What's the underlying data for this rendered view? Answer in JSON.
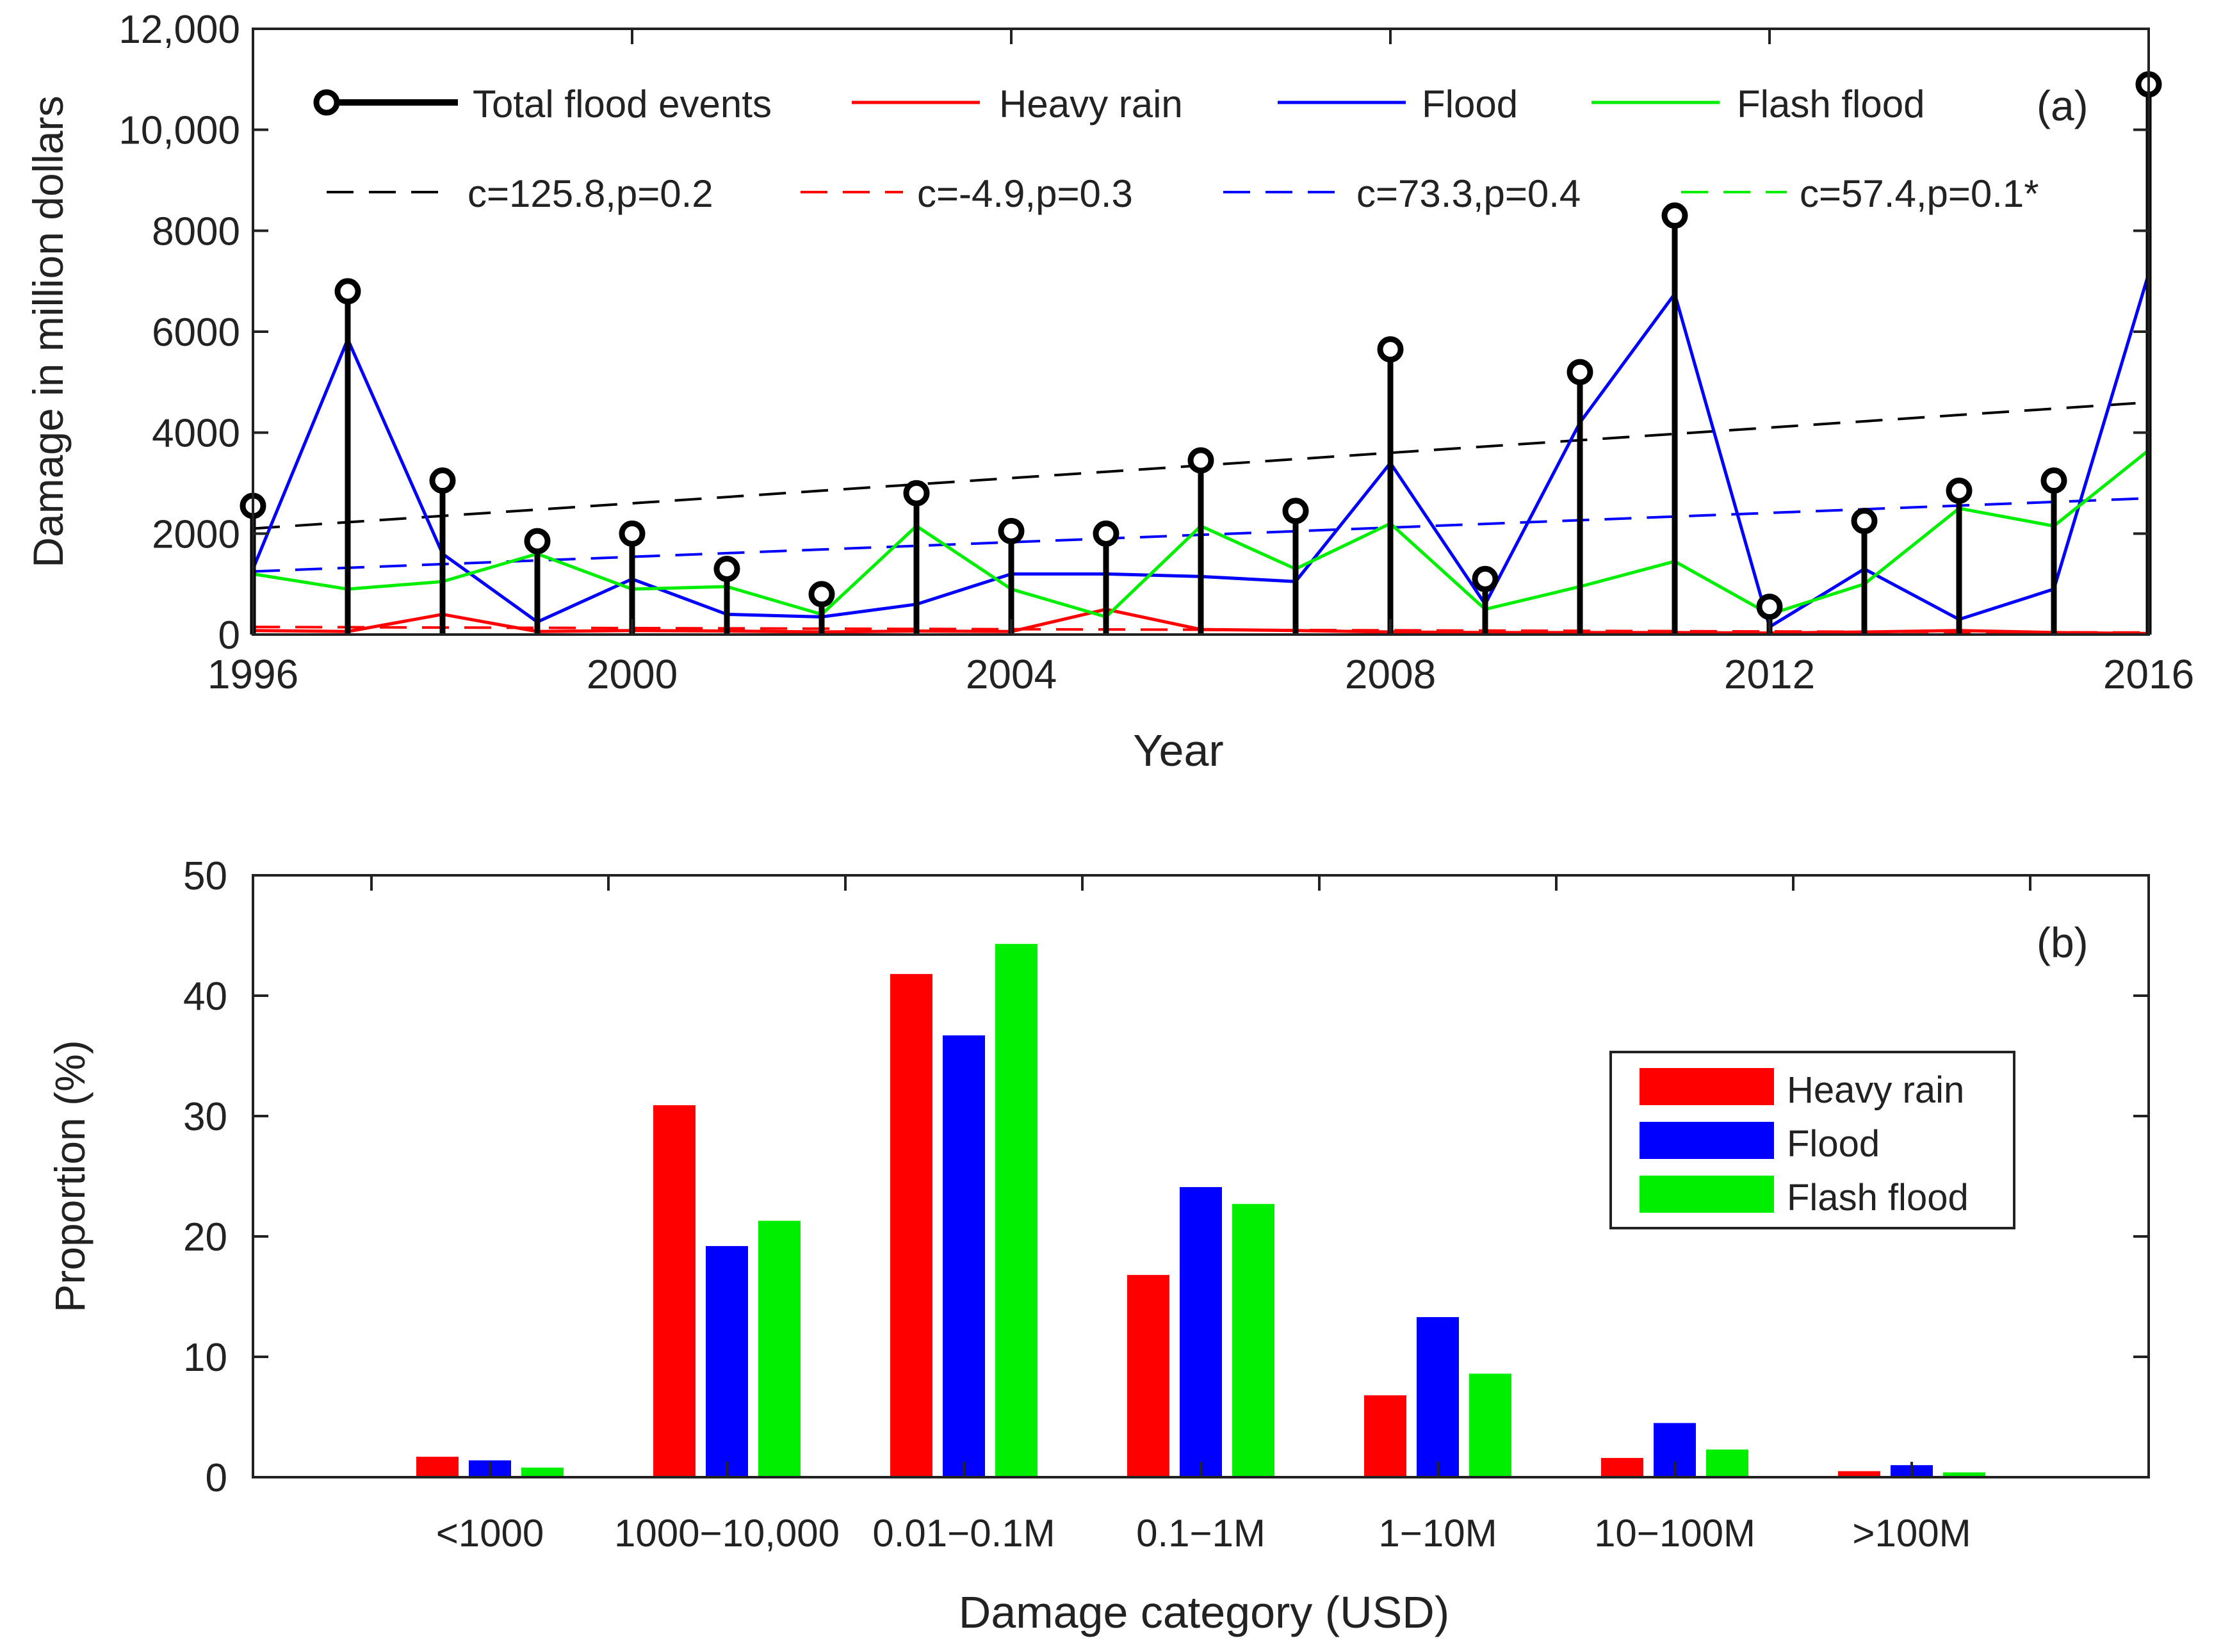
{
  "colors": {
    "heavy_rain": "#ff0000",
    "flood": "#0000ff",
    "flash_flood": "#00ee00",
    "total": "#000000"
  },
  "chart_data": [
    {
      "panel_label": "(a)",
      "type": "line",
      "title": "",
      "xlabel": "Year",
      "ylabel": "Damage in million dollars",
      "xlim": [
        1996,
        2016
      ],
      "ylim": [
        0,
        12000
      ],
      "x_ticks": [
        1996,
        2000,
        2004,
        2008,
        2012,
        2016
      ],
      "x_tick_labels": [
        "1996",
        "2000",
        "2004",
        "2008",
        "2012",
        "2016"
      ],
      "y_ticks": [
        0,
        2000,
        4000,
        6000,
        8000,
        10000,
        12000
      ],
      "y_tick_labels": [
        "0",
        "2000",
        "4000",
        "6000",
        "8000",
        "10,000",
        "12,000"
      ],
      "x": [
        1996,
        1997,
        1998,
        1999,
        2000,
        2001,
        2002,
        2003,
        2004,
        2005,
        2006,
        2007,
        2008,
        2009,
        2010,
        2011,
        2012,
        2013,
        2014,
        2015,
        2016
      ],
      "series": [
        {
          "key": "total",
          "name": "Total flood events",
          "style": "stem",
          "color": "#000000",
          "values": [
            2550,
            6800,
            3050,
            1850,
            2000,
            1300,
            800,
            2800,
            2050,
            2000,
            3450,
            2450,
            5650,
            1100,
            5200,
            8300,
            550,
            2250,
            2850,
            3050,
            10900
          ]
        },
        {
          "key": "heavy_rain",
          "name": "Heavy rain",
          "style": "line",
          "color": "#ff0000",
          "values": [
            80,
            60,
            400,
            60,
            80,
            70,
            50,
            70,
            60,
            500,
            100,
            80,
            50,
            40,
            40,
            40,
            30,
            50,
            80,
            40,
            20
          ]
        },
        {
          "key": "flood",
          "name": "Flood",
          "style": "line",
          "color": "#0000ff",
          "values": [
            1300,
            5850,
            1600,
            250,
            1100,
            400,
            350,
            600,
            1200,
            1200,
            1150,
            1050,
            3400,
            600,
            4200,
            6750,
            150,
            1300,
            300,
            900,
            7150
          ]
        },
        {
          "key": "flash_flood",
          "name": "Flash flood",
          "style": "line",
          "color": "#00ee00",
          "values": [
            1200,
            900,
            1050,
            1600,
            900,
            950,
            400,
            2150,
            900,
            350,
            2150,
            1300,
            2200,
            500,
            950,
            1450,
            400,
            1000,
            2500,
            2150,
            3650
          ]
        }
      ],
      "trends": [
        {
          "key": "total",
          "label": "c=125.8,p=0.2",
          "color": "#000000",
          "y_start": 2100,
          "y_end": 4600
        },
        {
          "key": "heavy_rain",
          "label": "c=-4.9,p=0.3",
          "color": "#ff0000",
          "y_start": 150,
          "y_end": 40
        },
        {
          "key": "flood",
          "label": "c=73.3,p=0.4",
          "color": "#0000ff",
          "y_start": 1250,
          "y_end": 2700
        },
        {
          "key": "flash_flood",
          "label": "c=57.4,p=0.1*",
          "color": "#00ee00",
          "y_start": null,
          "y_end": null
        }
      ]
    },
    {
      "panel_label": "(b)",
      "type": "bar",
      "title": "",
      "xlabel": "Damage category (USD)",
      "ylabel": "Proportion (%)",
      "ylim": [
        0,
        50
      ],
      "y_ticks": [
        0,
        10,
        20,
        30,
        40,
        50
      ],
      "y_tick_labels": [
        "0",
        "10",
        "20",
        "30",
        "40",
        "50"
      ],
      "categories": [
        "<1000",
        "1000−10,000",
        "0.01−0.1M",
        "0.1−1M",
        "1−10M",
        "10−100M",
        ">100M"
      ],
      "series": [
        {
          "key": "heavy_rain",
          "name": "Heavy rain",
          "color": "#ff0000",
          "values": [
            1.7,
            30.9,
            41.8,
            16.8,
            6.8,
            1.6,
            0.5
          ]
        },
        {
          "key": "flood",
          "name": "Flood",
          "color": "#0000ff",
          "values": [
            1.4,
            19.2,
            36.7,
            24.1,
            13.3,
            4.5,
            1.0
          ]
        },
        {
          "key": "flash_flood",
          "name": "Flash flood",
          "color": "#00ee00",
          "values": [
            0.8,
            21.3,
            44.3,
            22.7,
            8.6,
            2.3,
            0.4
          ]
        }
      ],
      "legend_position": "center-right"
    }
  ]
}
